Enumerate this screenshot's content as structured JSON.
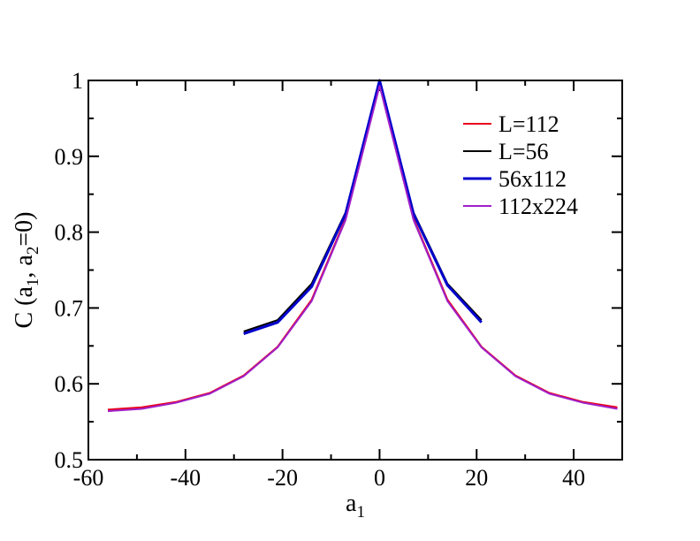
{
  "chart_data": {
    "type": "line",
    "title": "",
    "xlabel": {
      "main": "a",
      "sub": "1"
    },
    "ylabel": {
      "p1": "C (a",
      "s1": "1",
      "p2": ", a",
      "s2": "2",
      "p3": "=0)"
    },
    "xlim": [
      -60,
      50
    ],
    "ylim": [
      0.5,
      1.0
    ],
    "xticks": [
      -60,
      -40,
      -20,
      0,
      20,
      40
    ],
    "xtick_labels": [
      "-60",
      "-40",
      "-20",
      "0",
      "20",
      "40"
    ],
    "yticks": [
      0.5,
      0.6,
      0.7,
      0.8,
      0.9,
      1.0
    ],
    "ytick_labels": [
      "0.5",
      "0.6",
      "0.7",
      "0.8",
      "0.9",
      "1"
    ],
    "grid": false,
    "legend_position": "top-right",
    "series": [
      {
        "name": "L=112",
        "color": "#e8001c",
        "x": [
          -56,
          -49,
          -42,
          -35,
          -28,
          -21,
          -14,
          -7,
          0,
          7,
          14,
          21,
          28,
          35,
          42,
          49
        ],
        "y": [
          0.566,
          0.569,
          0.576,
          0.588,
          0.611,
          0.649,
          0.711,
          0.818,
          1.0,
          0.818,
          0.711,
          0.649,
          0.611,
          0.588,
          0.576,
          0.569
        ]
      },
      {
        "name": "L=56",
        "color": "#000000",
        "x": [
          -28,
          -21,
          -14,
          -7,
          0,
          7,
          14,
          21
        ],
        "y": [
          0.669,
          0.684,
          0.732,
          0.826,
          1.0,
          0.826,
          0.732,
          0.684
        ]
      },
      {
        "name": "56x112",
        "color": "#0000cc",
        "x": [
          -28,
          -21,
          -14,
          -7,
          0,
          7,
          14,
          21
        ],
        "y": [
          0.666,
          0.681,
          0.728,
          0.824,
          1.0,
          0.824,
          0.73,
          0.681
        ]
      },
      {
        "name": "112x224",
        "color": "#a020c8",
        "x": [
          -56,
          -49,
          -42,
          -35,
          -28,
          -21,
          -14,
          -7,
          0,
          7,
          14,
          21,
          28,
          35,
          42,
          49
        ],
        "y": [
          0.564,
          0.567,
          0.575,
          0.587,
          0.61,
          0.648,
          0.709,
          0.816,
          0.993,
          0.816,
          0.709,
          0.648,
          0.61,
          0.587,
          0.575,
          0.567
        ]
      }
    ]
  }
}
